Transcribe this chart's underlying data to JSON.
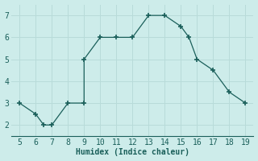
{
  "x_pts": [
    5,
    6,
    6.5,
    7,
    8,
    9,
    9,
    10,
    11,
    12,
    13,
    14,
    15,
    15.5,
    16,
    17,
    18,
    19
  ],
  "y_pts": [
    3.0,
    2.5,
    2.0,
    2.0,
    3.0,
    3.0,
    5.0,
    6.0,
    6.0,
    6.0,
    7.0,
    7.0,
    6.5,
    6.0,
    5.0,
    4.5,
    3.5,
    3.0
  ],
  "background_color": "#cdecea",
  "line_color": "#1a5f5a",
  "grid_color": "#b8dbd9",
  "xlabel": "Humidex (Indice chaleur)",
  "xlim": [
    4.5,
    19.5
  ],
  "ylim": [
    1.5,
    7.5
  ],
  "xticks": [
    5,
    6,
    7,
    8,
    9,
    10,
    11,
    12,
    13,
    14,
    15,
    16,
    17,
    18,
    19
  ],
  "yticks": [
    2,
    3,
    4,
    5,
    6,
    7
  ],
  "xlabel_fontsize": 7,
  "tick_fontsize": 7
}
